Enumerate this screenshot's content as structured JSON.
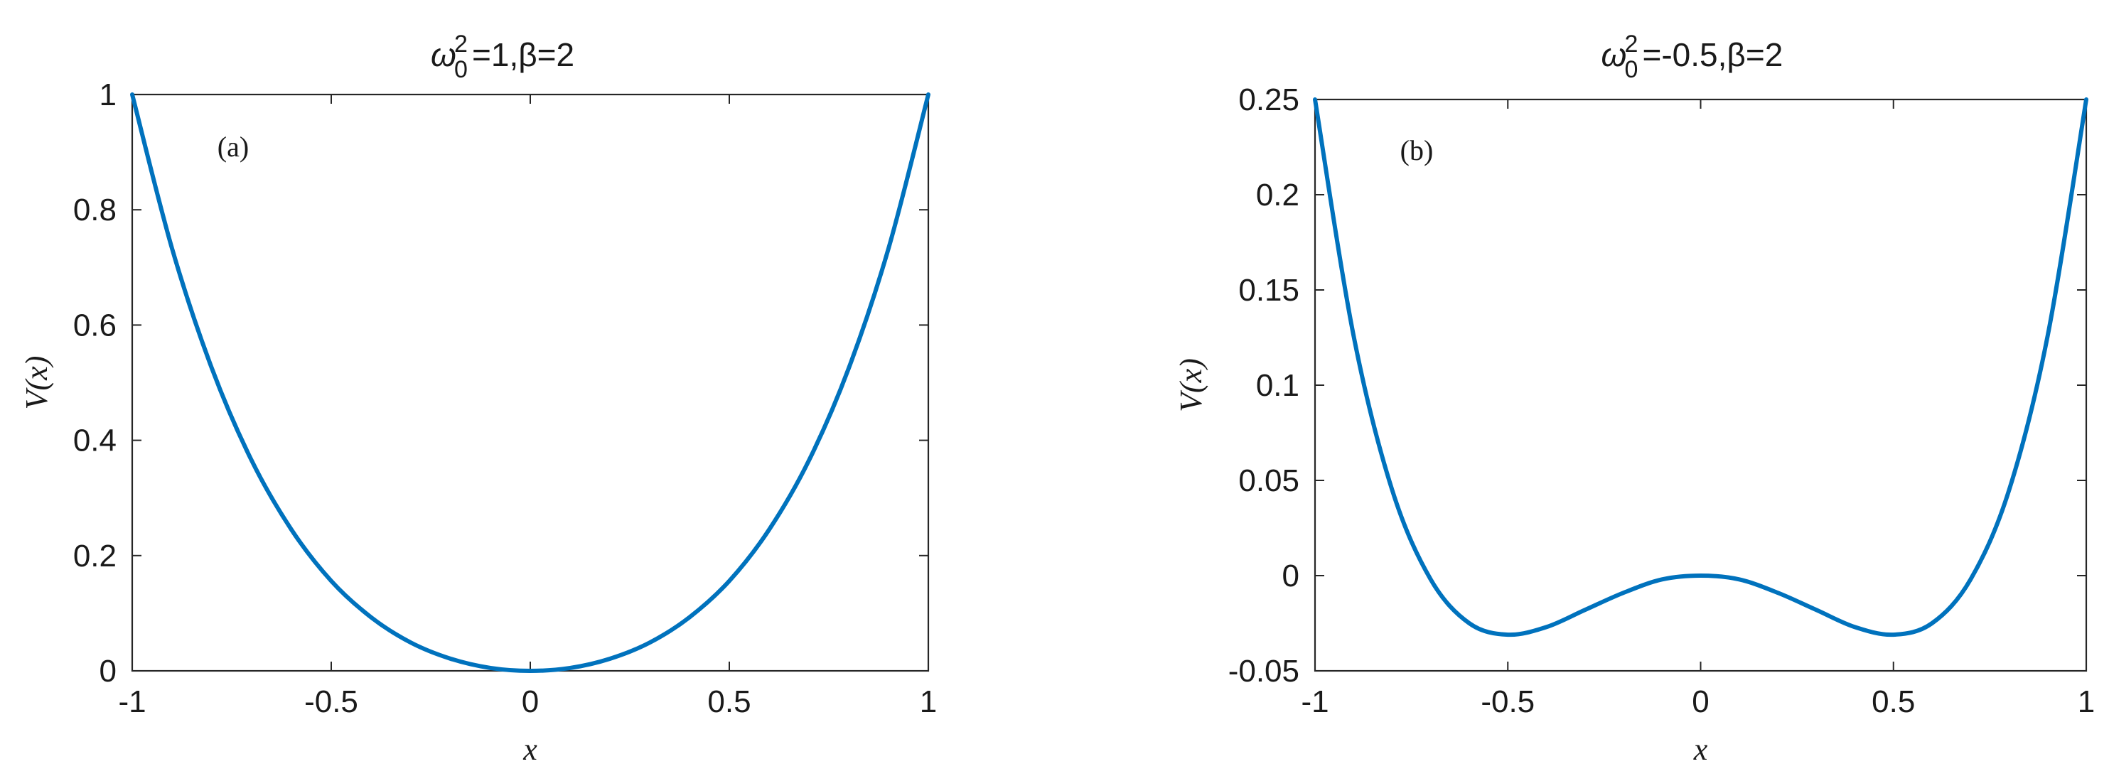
{
  "chart_data": [
    {
      "type": "line",
      "title": "ω₀²=1,β=2",
      "title_parts": {
        "symbol": "ω",
        "sub": "0",
        "sup": "2",
        "rest": "=1,β=2"
      },
      "panel_label": "(a)",
      "xlabel": "x",
      "ylabel": "V(x)",
      "xlim": [
        -1,
        1
      ],
      "ylim": [
        0,
        1
      ],
      "xticks": [
        -1,
        -0.5,
        0,
        0.5,
        1
      ],
      "xtick_labels": [
        "-1",
        "-0.5",
        "0",
        "0.5",
        "1"
      ],
      "yticks": [
        0,
        0.2,
        0.4,
        0.6,
        0.8,
        1
      ],
      "ytick_labels": [
        "0",
        "0.2",
        "0.4",
        "0.6",
        "0.8",
        "1"
      ],
      "grid": false,
      "series": [
        {
          "color": "#0072BD",
          "x": [
            -1,
            -0.9,
            -0.8,
            -0.7,
            -0.6,
            -0.5,
            -0.4,
            -0.3,
            -0.2,
            -0.1,
            0,
            0.1,
            0.2,
            0.3,
            0.4,
            0.5,
            0.6,
            0.7,
            0.8,
            0.9,
            1
          ],
          "y": [
            1,
            0.733,
            0.525,
            0.365,
            0.245,
            0.156,
            0.093,
            0.049,
            0.021,
            0.005,
            0,
            0.005,
            0.021,
            0.049,
            0.093,
            0.156,
            0.245,
            0.365,
            0.525,
            0.733,
            1
          ]
        }
      ]
    },
    {
      "type": "line",
      "title": "ω₀²=-0.5,β=2",
      "title_parts": {
        "symbol": "ω",
        "sub": "0",
        "sup": "2",
        "rest": "=-0.5,β=2"
      },
      "panel_label": "(b)",
      "xlabel": "x",
      "ylabel": "V(x)",
      "xlim": [
        -1,
        1
      ],
      "ylim": [
        -0.05,
        0.25
      ],
      "xticks": [
        -1,
        -0.5,
        0,
        0.5,
        1
      ],
      "xtick_labels": [
        "-1",
        "-0.5",
        "0",
        "0.5",
        "1"
      ],
      "yticks": [
        -0.05,
        0,
        0.05,
        0.1,
        0.15,
        0.2,
        0.25
      ],
      "ytick_labels": [
        "-0.05",
        "0",
        "0.05",
        "0.1",
        "0.15",
        "0.2",
        "0.25"
      ],
      "grid": false,
      "series": [
        {
          "color": "#0072BD",
          "x": [
            -1,
            -0.9,
            -0.8,
            -0.7,
            -0.6,
            -0.5,
            -0.4,
            -0.3,
            -0.2,
            -0.1,
            0,
            0.1,
            0.2,
            0.3,
            0.4,
            0.5,
            0.6,
            0.7,
            0.8,
            0.9,
            1
          ],
          "y": [
            0.25,
            0.126,
            0.045,
            -0.002,
            -0.025,
            -0.031,
            -0.027,
            -0.018,
            -0.009,
            -0.002,
            0,
            -0.002,
            -0.009,
            -0.018,
            -0.027,
            -0.031,
            -0.025,
            -0.002,
            0.045,
            0.126,
            0.25
          ]
        }
      ]
    }
  ]
}
